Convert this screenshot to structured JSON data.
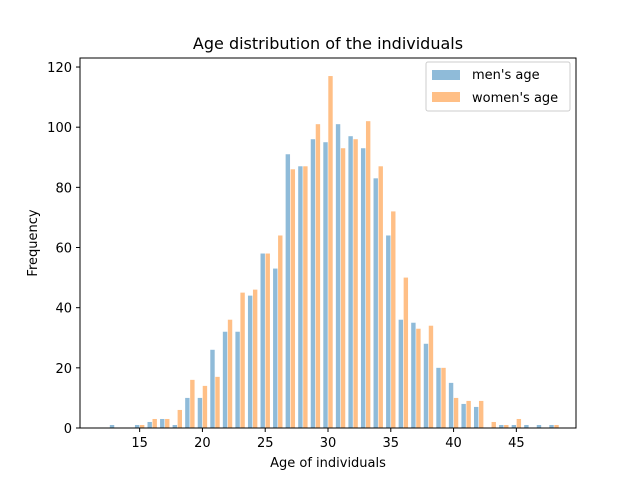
{
  "chart_data": {
    "type": "bar",
    "title": "Age distribution of the individuals",
    "xlabel": "Age of individuals",
    "ylabel": "Frequency",
    "xlim": [
      10.25,
      49.75
    ],
    "ylim": [
      0,
      123
    ],
    "xticks": [
      15,
      20,
      25,
      30,
      35,
      40,
      45
    ],
    "yticks": [
      0,
      20,
      40,
      60,
      80,
      100,
      120
    ],
    "legend_position": "top-right",
    "series": [
      {
        "name": "men's age",
        "color": "#1f77b4",
        "opacity": 0.5,
        "x": [
          13,
          15,
          16,
          17,
          18,
          19,
          20,
          21,
          22,
          23,
          24,
          25,
          26,
          27,
          28,
          29,
          30,
          31,
          32,
          33,
          34,
          35,
          36,
          37,
          38,
          39,
          40,
          41,
          42,
          44,
          45,
          46,
          47,
          48
        ],
        "values": [
          1,
          1,
          2,
          3,
          1,
          10,
          10,
          26,
          32,
          32,
          44,
          58,
          53,
          91,
          87,
          96,
          95,
          101,
          97,
          93,
          83,
          64,
          36,
          35,
          28,
          20,
          15,
          8,
          7,
          1,
          1,
          1,
          1,
          1
        ]
      },
      {
        "name": "women's age",
        "color": "#ff7f0e",
        "opacity": 0.5,
        "x": [
          15,
          16,
          17,
          18,
          19,
          20,
          21,
          22,
          23,
          24,
          25,
          26,
          27,
          28,
          29,
          30,
          31,
          32,
          33,
          34,
          35,
          36,
          37,
          38,
          39,
          40,
          41,
          42,
          43,
          44,
          45,
          48
        ],
        "values": [
          1,
          3,
          3,
          6,
          16,
          14,
          17,
          36,
          45,
          46,
          58,
          64,
          86,
          87,
          101,
          117,
          93,
          96,
          102,
          87,
          72,
          50,
          33,
          34,
          20,
          10,
          9,
          9,
          2,
          1,
          3,
          1
        ]
      }
    ]
  }
}
